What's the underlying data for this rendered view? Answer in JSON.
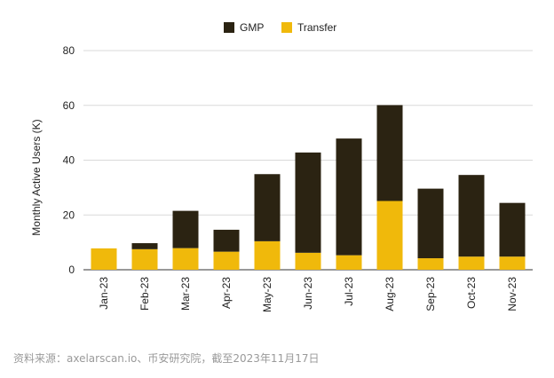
{
  "chart_data": {
    "type": "bar",
    "stacked": true,
    "categories": [
      "Jan-23",
      "Feb-23",
      "Mar-23",
      "Apr-23",
      "May-23",
      "Jun-23",
      "Jul-23",
      "Aug-23",
      "Sep-23",
      "Oct-23",
      "Nov-23"
    ],
    "series": [
      {
        "name": "Transfer",
        "color": "#f0b90b",
        "values": [
          7.8,
          7.5,
          7.9,
          6.6,
          10.4,
          6.2,
          5.3,
          25.1,
          4.2,
          4.8,
          4.8
        ]
      },
      {
        "name": "GMP",
        "color": "#2b2312",
        "values": [
          0,
          2.2,
          13.6,
          8.0,
          24.5,
          36.6,
          42.6,
          35.0,
          25.4,
          29.8,
          19.6
        ]
      }
    ],
    "legend": {
      "position": "top-center",
      "items": [
        {
          "name": "GMP",
          "color": "#2b2312"
        },
        {
          "name": "Transfer",
          "color": "#f0b90b"
        }
      ]
    },
    "title": "",
    "xlabel": "",
    "ylabel": "Monthly Active Users (K)",
    "ylim": [
      0,
      80
    ],
    "yticks": [
      0,
      20,
      40,
      60,
      80
    ],
    "grid": true
  },
  "source_note": "资料来源：axelarscan.io、币安研究院，截至2023年11月17日"
}
